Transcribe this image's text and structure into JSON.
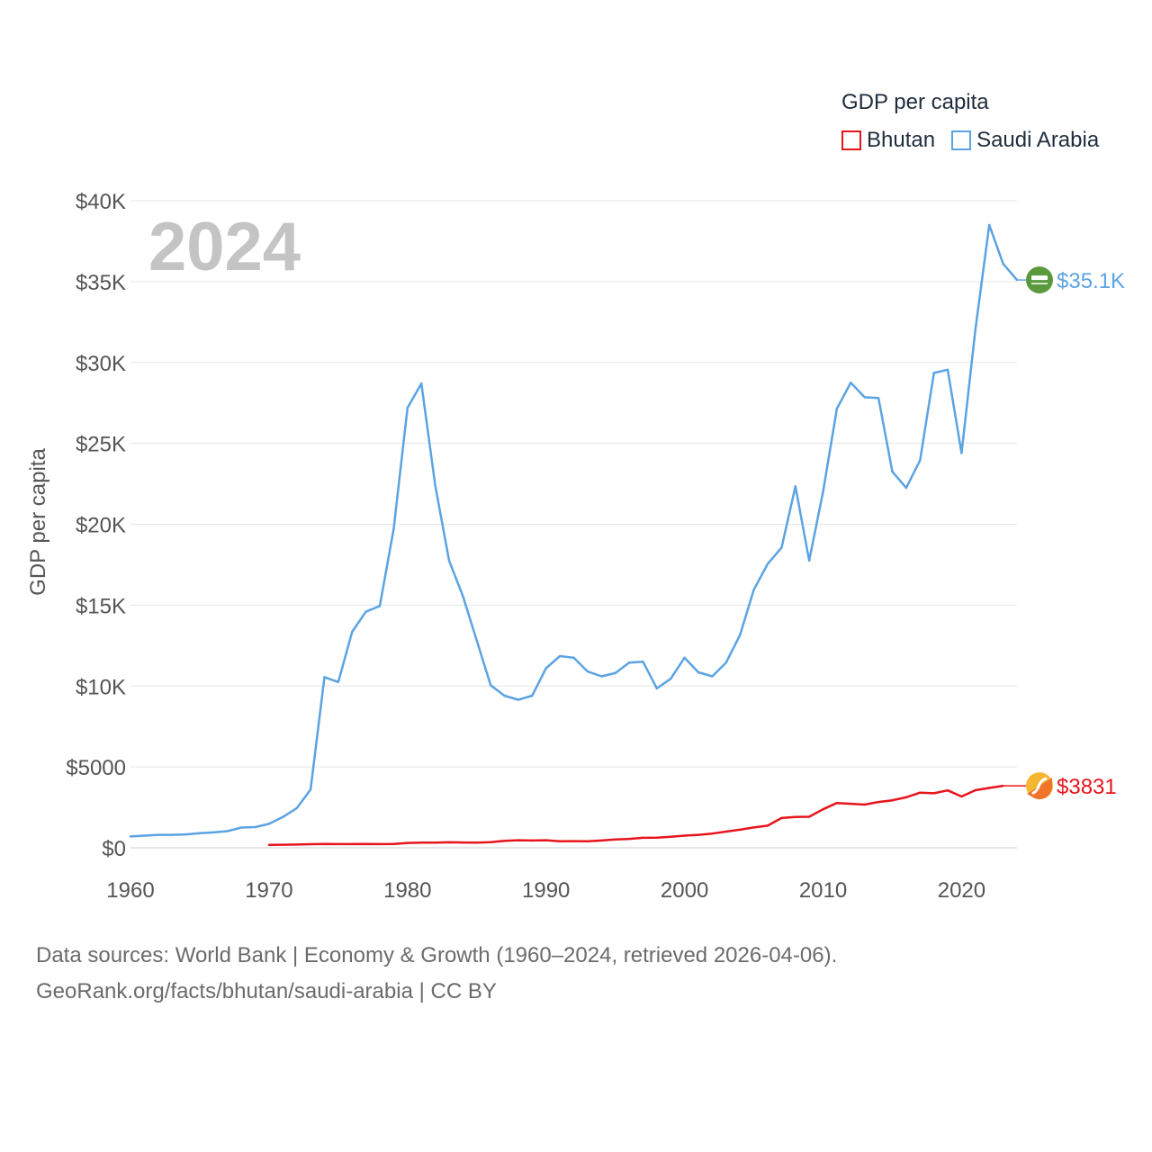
{
  "legend": {
    "title": "GDP per capita",
    "items": [
      {
        "label": "Bhutan",
        "color": "#e8141c"
      },
      {
        "label": "Saudi Arabia",
        "color": "#5ba3e2"
      }
    ]
  },
  "source": {
    "line1": "Data sources: World Bank | Economy & Growth (1960–2024, retrieved 2026-04-06).",
    "line2": "GeoRank.org/facts/bhutan/saudi-arabia | CC BY"
  },
  "chart_data": {
    "type": "line",
    "title": "GDP per capita",
    "year_label": "2024",
    "ylabel": "GDP per capita",
    "xlabel": "",
    "xlim": [
      1960,
      2024
    ],
    "ylim": [
      0,
      40000
    ],
    "grid": true,
    "x_ticks": [
      1960,
      1970,
      1980,
      1990,
      2000,
      2010,
      2020
    ],
    "y_ticks": [
      {
        "value": 0,
        "label": "$0"
      },
      {
        "value": 5000,
        "label": "$5000"
      },
      {
        "value": 10000,
        "label": "$10K"
      },
      {
        "value": 15000,
        "label": "$15K"
      },
      {
        "value": 20000,
        "label": "$20K"
      },
      {
        "value": 25000,
        "label": "$25K"
      },
      {
        "value": 30000,
        "label": "$30K"
      },
      {
        "value": 35000,
        "label": "$35K"
      },
      {
        "value": 40000,
        "label": "$40K"
      }
    ],
    "series": [
      {
        "name": "Saudi Arabia",
        "color": "#5ba3e2",
        "end_label": "$35.1K",
        "flag_icon": "saudi-arabia-flag-icon",
        "x": [
          1960,
          1961,
          1962,
          1963,
          1964,
          1965,
          1966,
          1967,
          1968,
          1969,
          1970,
          1971,
          1972,
          1973,
          1974,
          1975,
          1976,
          1977,
          1978,
          1979,
          1980,
          1981,
          1982,
          1983,
          1984,
          1985,
          1986,
          1987,
          1988,
          1989,
          1990,
          1991,
          1992,
          1993,
          1994,
          1995,
          1996,
          1997,
          1998,
          1999,
          2000,
          2001,
          2002,
          2003,
          2004,
          2005,
          2006,
          2007,
          2008,
          2009,
          2010,
          2011,
          2012,
          2013,
          2014,
          2015,
          2016,
          2017,
          2018,
          2019,
          2020,
          2021,
          2022,
          2023,
          2024
        ],
        "values": [
          700,
          750,
          800,
          800,
          830,
          900,
          950,
          1030,
          1250,
          1280,
          1480,
          1900,
          2450,
          3600,
          10550,
          10250,
          13350,
          14600,
          14950,
          19700,
          27200,
          28700,
          22400,
          17750,
          15550,
          12800,
          10050,
          9400,
          9150,
          9400,
          11100,
          11850,
          11750,
          10900,
          10600,
          10800,
          11450,
          11500,
          9850,
          10450,
          11750,
          10850,
          10600,
          11450,
          13150,
          15950,
          17550,
          18550,
          22350,
          17750,
          22000,
          27150,
          28750,
          27850,
          27800,
          23250,
          22250,
          23950,
          29350,
          29550,
          24400,
          32050,
          38500,
          36100,
          35100
        ]
      },
      {
        "name": "Bhutan",
        "color": "#e8141c",
        "end_label": "$3831",
        "flag_icon": "bhutan-flag-icon",
        "x": [
          1970,
          1971,
          1972,
          1973,
          1974,
          1975,
          1976,
          1977,
          1978,
          1979,
          1980,
          1981,
          1982,
          1983,
          1984,
          1985,
          1986,
          1987,
          1988,
          1989,
          1990,
          1991,
          1992,
          1993,
          1994,
          1995,
          1996,
          1997,
          1998,
          1999,
          2000,
          2001,
          2002,
          2003,
          2004,
          2005,
          2006,
          2007,
          2008,
          2009,
          2010,
          2011,
          2012,
          2013,
          2014,
          2015,
          2016,
          2017,
          2018,
          2019,
          2020,
          2021,
          2022,
          2023
        ],
        "values": [
          180,
          190,
          200,
          220,
          240,
          230,
          230,
          240,
          230,
          240,
          300,
          320,
          320,
          340,
          330,
          320,
          350,
          430,
          470,
          450,
          470,
          400,
          410,
          400,
          450,
          510,
          550,
          620,
          630,
          680,
          750,
          800,
          880,
          1000,
          1120,
          1260,
          1370,
          1840,
          1910,
          1920,
          2380,
          2770,
          2720,
          2670,
          2830,
          2940,
          3120,
          3410,
          3370,
          3550,
          3170,
          3560,
          3700,
          3831
        ]
      }
    ]
  }
}
